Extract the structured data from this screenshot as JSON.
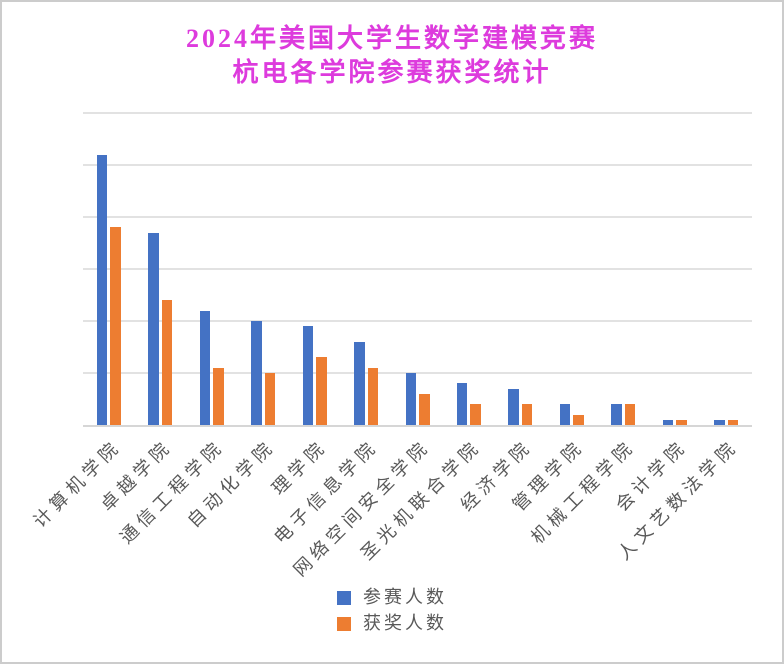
{
  "window": {
    "background": "#ffffff",
    "border_color": "#cccccc"
  },
  "title": {
    "line1": "2024年美国大学生数学建模竞赛",
    "line2": "杭电各学院参赛获奖统计",
    "color": "#dd3bdd"
  },
  "chart_data": {
    "type": "bar",
    "title": "2024年美国大学生数学建模竞赛 杭电各学院参赛获奖统计",
    "categories": [
      "计算机学院",
      "卓越学院",
      "通信工程学院",
      "自动化学院",
      "理学院",
      "电子信息学院",
      "网络空间安全学院",
      "圣光机联合学院",
      "经济学院",
      "管理学院",
      "机械工程学院",
      "会计学院",
      "人文艺数法学院"
    ],
    "series": [
      {
        "name": "参赛人数",
        "color": "#4472c4",
        "values": [
          52,
          37,
          22,
          20,
          19,
          16,
          10,
          8,
          7,
          4,
          4,
          1,
          1
        ]
      },
      {
        "name": "获奖人数",
        "color": "#ed7d31",
        "values": [
          38,
          24,
          11,
          10,
          13,
          11,
          6,
          4,
          4,
          2,
          4,
          1,
          1
        ]
      }
    ],
    "xlabel": "",
    "ylabel": "",
    "ylim": [
      0,
      60
    ],
    "gridline_step": 10,
    "grid": true,
    "y_tick_labels_visible": false,
    "legend_position": "bottom",
    "gridline_color": "#e2e2e2",
    "axis_line_color": "#d6d6d6",
    "category_label_color": "#595959",
    "legend_label_color": "#595959"
  }
}
